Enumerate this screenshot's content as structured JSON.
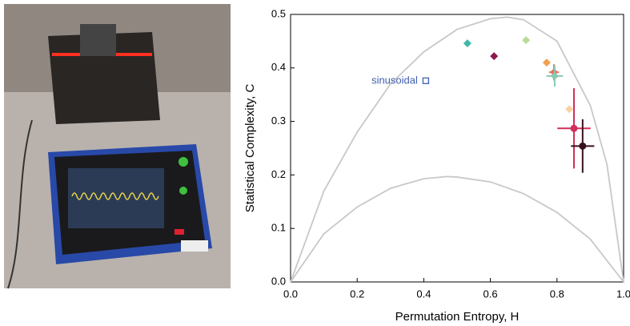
{
  "chart_data": {
    "type": "scatter",
    "xlabel": "Permutation Entropy, H",
    "ylabel": "Statistical Complexity, C",
    "xlim": [
      0,
      1
    ],
    "ylim": [
      0,
      0.5
    ],
    "xticks": [
      {
        "value": 0,
        "label": "0.0"
      },
      {
        "value": 0.2,
        "label": "0.2"
      },
      {
        "value": 0.4,
        "label": "0.4"
      },
      {
        "value": 0.6,
        "label": "0.6"
      },
      {
        "value": 0.8,
        "label": "0.8"
      },
      {
        "value": 1,
        "label": "1.0"
      }
    ],
    "yticks": [
      {
        "value": 0,
        "label": "0.0"
      },
      0.1,
      0.2,
      0.3,
      0.4,
      0.5
    ],
    "curves": [
      {
        "color": "#c8c8c8",
        "x": [
          0,
          0.1,
          0.2,
          0.3,
          0.4,
          0.5,
          0.6,
          0.65,
          0.7,
          0.8,
          0.9,
          0.95,
          1
        ],
        "y": [
          0,
          0.17,
          0.28,
          0.37,
          0.43,
          0.472,
          0.492,
          0.495,
          0.49,
          0.45,
          0.33,
          0.22,
          0
        ]
      },
      {
        "color": "#c8c8c8",
        "x": [
          0,
          0.1,
          0.2,
          0.3,
          0.4,
          0.47,
          0.5,
          0.6,
          0.7,
          0.8,
          0.9,
          1
        ],
        "y": [
          0,
          0.09,
          0.14,
          0.175,
          0.193,
          0.197,
          0.196,
          0.187,
          0.165,
          0.13,
          0.08,
          0
        ]
      }
    ],
    "points": [
      {
        "x": 0.406,
        "y": 0.376,
        "color": "#4060b0",
        "marker": "square",
        "label": "sinusoidal"
      },
      {
        "x": 0.531,
        "y": 0.446,
        "color": "#3fb8a8",
        "marker": "diamond"
      },
      {
        "x": 0.611,
        "y": 0.422,
        "color": "#8b1a4a",
        "marker": "diamond"
      },
      {
        "x": 0.707,
        "y": 0.452,
        "color": "#b8dc9c",
        "marker": "diamond"
      },
      {
        "x": 0.769,
        "y": 0.41,
        "color": "#f0a050",
        "marker": "diamond"
      },
      {
        "x": 0.791,
        "y": 0.392,
        "color": "#e87060",
        "marker": "diamond",
        "xerr": 0.015,
        "yerr": 0.015
      },
      {
        "x": 0.793,
        "y": 0.385,
        "color": "#88c9b0",
        "marker": "diamond",
        "xerr": 0.025,
        "yerr": 0.02
      },
      {
        "x": 0.837,
        "y": 0.323,
        "color": "#fbd0a0",
        "marker": "diamond"
      },
      {
        "x": 0.851,
        "y": 0.287,
        "color": "#d0305a",
        "marker": "circle",
        "xerr": 0.05,
        "yerr": 0.075
      },
      {
        "x": 0.877,
        "y": 0.254,
        "color": "#3a1020",
        "marker": "circle",
        "xerr": 0.035,
        "yerr": 0.05
      }
    ]
  }
}
